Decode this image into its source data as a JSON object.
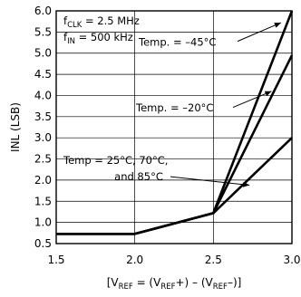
{
  "chart_data": {
    "type": "line",
    "xlabel_parts": [
      "[V",
      "REF",
      " = (V",
      "REF",
      "+) – (V",
      "REF",
      "–)]"
    ],
    "ylabel": "INL (LSB)",
    "xlim": [
      1.5,
      3.0
    ],
    "ylim": [
      0.5,
      6.0
    ],
    "x_ticks": [
      "1.5",
      "2.0",
      "2.5",
      "3.0"
    ],
    "y_ticks": [
      "0.5",
      "1.0",
      "1.5",
      "2.0",
      "2.5",
      "3.0",
      "3.5",
      "4.0",
      "4.5",
      "5.0",
      "5.5",
      "6.0"
    ],
    "grid": true,
    "conditions": [
      {
        "main": "f",
        "sub": "CLK",
        "rest": " = 2.5 MHz"
      },
      {
        "main": "f",
        "sub": "IN",
        "rest": " = 500 kHz"
      }
    ],
    "series": [
      {
        "label": "Temp. = –45°C",
        "x": [
          1.5,
          2.0,
          2.5,
          3.0
        ],
        "y": [
          0.73,
          0.73,
          1.22,
          6.0
        ]
      },
      {
        "label": "Temp. = –20°C",
        "x": [
          1.5,
          2.0,
          2.5,
          3.0
        ],
        "y": [
          0.73,
          0.73,
          1.22,
          4.95
        ]
      },
      {
        "label_lines": [
          "Temp = 25°C, 70°C,",
          "and 85°C"
        ],
        "x": [
          1.5,
          2.0,
          2.5,
          3.0
        ],
        "y": [
          0.73,
          0.73,
          1.22,
          3.0
        ]
      }
    ]
  }
}
